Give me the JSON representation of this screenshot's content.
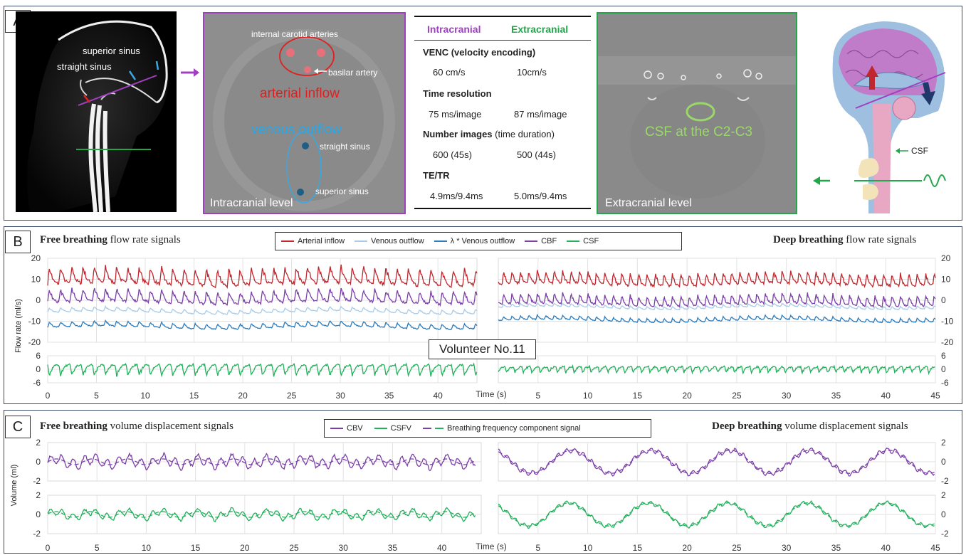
{
  "panel_a": {
    "label": "A",
    "sagittal": {
      "superior_sinus": "superior sinus",
      "straight_sinus": "straight sinus"
    },
    "intracranial_image": {
      "internal_carotid": "internal  carotid arteries",
      "basilar": "basilar artery",
      "arterial_inflow": "arterial inflow",
      "venous_outflow": "venous outflow",
      "straight_sinus": "straight sinus",
      "superior_sinus": "superior sinus",
      "level": "Intracranial level"
    },
    "table": {
      "col1": "Intracranial",
      "col2": "Extracranial",
      "rows": [
        {
          "header": "VENC (velocity encoding)",
          "v1": "60 cm/s",
          "v2": "10cm/s"
        },
        {
          "header": "Time resolution",
          "v1": "75 ms/image",
          "v2": "87 ms/image"
        },
        {
          "header_bold": "Number images",
          "header_rest": " (time duration)",
          "v1": "600 (45s)",
          "v2": "500 (44s)"
        },
        {
          "header": "TE/TR",
          "v1": "4.9ms/9.4ms",
          "v2": "5.0ms/9.4ms"
        }
      ]
    },
    "extracranial_image": {
      "csf": "CSF at the C2-C3",
      "level": "Extracranial  level"
    },
    "diagram": {
      "csf": "CSF"
    }
  },
  "panel_b": {
    "label": "B",
    "title_left_bold": "Free breathing",
    "title_left_rest": " flow rate signals",
    "title_right_bold": "Deep breathing",
    "title_right_rest": " flow rate signals",
    "volunteer": "Volunteer No.11",
    "ylabel": "Flow rate (ml/s)",
    "xlabel": "Time (s)",
    "legend": [
      {
        "name": "Arterial inflow",
        "color": "#c0262d"
      },
      {
        "name": "Venous outflow",
        "color": "#a9cbe8"
      },
      {
        "name": "λ * Venous outflow",
        "color": "#2a7bbf"
      },
      {
        "name": "CBF",
        "color": "#7b3fa8"
      },
      {
        "name": "CSF",
        "color": "#22b05b"
      }
    ],
    "yticks_top": [
      "20",
      "10",
      "0",
      "-10",
      "-20"
    ],
    "yticks_bottom": [
      "6",
      "0",
      "-6"
    ],
    "xticks_left": [
      "0",
      "5",
      "10",
      "15",
      "20",
      "25",
      "30",
      "35",
      "40"
    ],
    "xticks_right": [
      "5",
      "10",
      "15",
      "20",
      "25",
      "30",
      "35",
      "40",
      "45"
    ]
  },
  "panel_c": {
    "label": "C",
    "title_left_bold": "Free breathing",
    "title_left_rest": " volume displacement signals",
    "title_right_bold": "Deep breathing",
    "title_right_rest": " volume displacement signals",
    "ylabel": "Volume (ml)",
    "xlabel": "Time (s)",
    "legend": [
      {
        "name": "CBV",
        "color": "#7b3fa8",
        "style": "solid"
      },
      {
        "name": "CSFV",
        "color": "#22b05b",
        "style": "solid"
      },
      {
        "name": "Breathing frequency component signal",
        "color": "#7b3fa8",
        "color2": "#22b05b",
        "style": "dashed"
      }
    ],
    "yticks": [
      "2",
      "0",
      "-2"
    ],
    "xticks_left": [
      "0",
      "5",
      "10",
      "15",
      "20",
      "25",
      "30",
      "35",
      "40"
    ],
    "xticks_right": [
      "5",
      "10",
      "15",
      "20",
      "25",
      "30",
      "35",
      "40",
      "45"
    ]
  },
  "chart_data": [
    {
      "type": "line",
      "panel": "B-free",
      "xlabel": "Time (s)",
      "ylabel": "Flow rate (ml/s)",
      "xlim": [
        0,
        45
      ],
      "ylim": [
        -20,
        20
      ],
      "series": [
        {
          "name": "Arterial inflow",
          "shape": "cardiac",
          "mean": 11,
          "amplitude": 8,
          "period": 1.15
        },
        {
          "name": "CBF",
          "shape": "cardiac",
          "mean": 1.5,
          "amplitude": 6,
          "period": 1.15
        },
        {
          "name": "Venous outflow",
          "shape": "cardiac",
          "mean": -5,
          "amplitude": 2,
          "period": 1.15
        },
        {
          "name": "λ * Venous outflow",
          "shape": "cardiac",
          "mean": -12,
          "amplitude": 2.5,
          "period": 1.15
        }
      ]
    },
    {
      "type": "line",
      "panel": "B-deep",
      "xlabel": "Time (s)",
      "ylabel": "Flow rate (ml/s)",
      "xlim": [
        0,
        45
      ],
      "ylim": [
        -20,
        20
      ],
      "series": [
        {
          "name": "Arterial inflow",
          "shape": "cardiac",
          "mean": 10,
          "amplitude": 6,
          "period": 0.85
        },
        {
          "name": "CBF",
          "shape": "cardiac",
          "mean": 0,
          "amplitude": 5,
          "period": 0.85
        },
        {
          "name": "Venous outflow",
          "shape": "cardiac",
          "mean": -3,
          "amplitude": 1.5,
          "period": 0.85
        },
        {
          "name": "λ * Venous outflow",
          "shape": "cardiac",
          "mean": -9,
          "amplitude": 2,
          "period": 0.85
        }
      ]
    },
    {
      "type": "line",
      "panel": "B-csf",
      "xlabel": "Time (s)",
      "ylabel": "Flow rate (ml/s)",
      "xlim": [
        0,
        45
      ],
      "ylim": [
        -6,
        6
      ],
      "series": [
        {
          "name": "CSF free",
          "shape": "cardiac",
          "mean": 0,
          "amplitude": 4.5,
          "period": 1.15
        },
        {
          "name": "CSF deep",
          "shape": "cardiac",
          "mean": 0,
          "amplitude": 2.5,
          "period": 0.85
        }
      ]
    },
    {
      "type": "line",
      "panel": "C-free",
      "xlabel": "Time (s)",
      "ylabel": "Volume (ml)",
      "xlim": [
        0,
        45
      ],
      "ylim": [
        -2,
        2
      ],
      "series": [
        {
          "name": "CBV",
          "breathing_period": 3.6,
          "breathing_amplitude": 0.3,
          "cardiac_amplitude": 0.5
        },
        {
          "name": "CSFV",
          "breathing_period": 3.6,
          "breathing_amplitude": 0.3,
          "cardiac_amplitude": 0.35
        }
      ]
    },
    {
      "type": "line",
      "panel": "C-deep",
      "xlabel": "Time (s)",
      "ylabel": "Volume (ml)",
      "xlim": [
        0,
        45
      ],
      "ylim": [
        -2,
        2
      ],
      "series": [
        {
          "name": "CBV",
          "breathing_period": 8.0,
          "breathing_amplitude": 1.2,
          "cardiac_amplitude": 0.25
        },
        {
          "name": "CSFV",
          "breathing_period": 8.0,
          "breathing_amplitude": 1.2,
          "cardiac_amplitude": 0.2
        }
      ]
    }
  ]
}
